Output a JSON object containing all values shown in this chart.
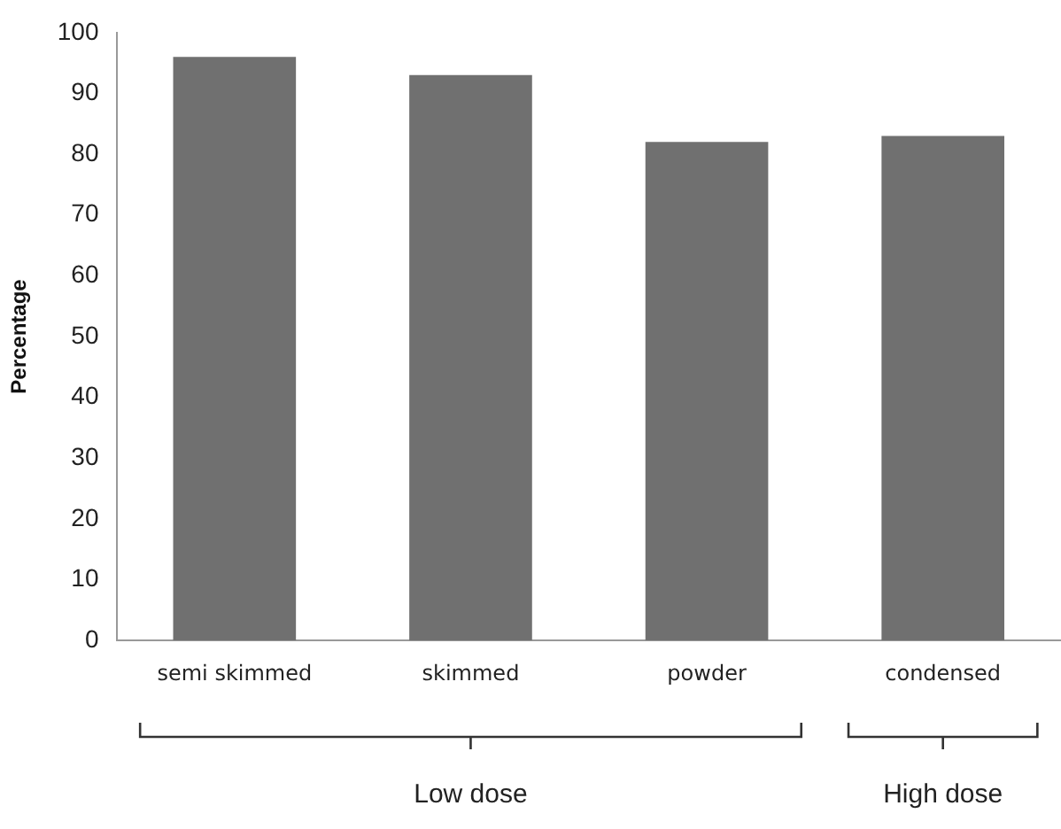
{
  "chart_data": {
    "type": "bar",
    "ylabel": "Percentage",
    "categories": [
      "semi skimmed",
      "skimmed",
      "powder",
      "condensed"
    ],
    "values": [
      96,
      93,
      82,
      83
    ],
    "color": "#707070",
    "ylim": [
      0,
      100
    ],
    "yticks": [
      0,
      10,
      20,
      30,
      40,
      50,
      60,
      70,
      80,
      90,
      100
    ],
    "grid": false,
    "legend": false,
    "annotations": [
      "Low dose",
      "High dose"
    ]
  }
}
